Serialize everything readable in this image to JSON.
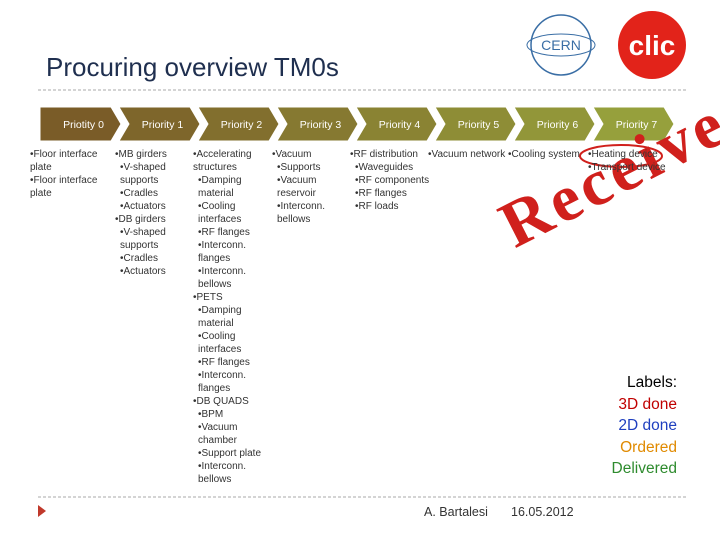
{
  "header": {
    "title": "Procuring overview TM0s"
  },
  "logos": {
    "cern": "CERN",
    "clic": "clic"
  },
  "columns": [
    {
      "heading": "Priotity 0",
      "items": [
        {
          "text": "Floor interface plate"
        },
        {
          "text": "Floor interface plate"
        }
      ]
    },
    {
      "heading": "Priority 1",
      "items": [
        {
          "text": "MB girders",
          "sub": [
            "V-shaped supports",
            "Cradles",
            "Actuators"
          ]
        },
        {
          "text": "DB girders",
          "sub": [
            "V-shaped supports",
            "Cradles",
            "Actuators"
          ]
        }
      ]
    },
    {
      "heading": "Priority 2",
      "items": [
        {
          "text": "Accelerating structures",
          "sub": [
            "Damping material",
            "Cooling interfaces",
            "RF flanges",
            "Interconn. flanges",
            "Interconn. bellows"
          ]
        },
        {
          "text": "PETS",
          "sub": [
            "Damping material",
            "Cooling interfaces",
            "RF flanges",
            "Interconn. flanges"
          ]
        },
        {
          "text": "DB QUADS",
          "sub": [
            "BPM",
            "Vacuum chamber",
            "Support plate",
            "Interconn. bellows"
          ]
        }
      ]
    },
    {
      "heading": "Priority 3",
      "items": [
        {
          "text": "Vacuum",
          "sub": [
            "Supports",
            "Vacuum reservoir",
            "Interconn. bellows"
          ]
        }
      ]
    },
    {
      "heading": "Priority 4",
      "items": [
        {
          "text": "RF distribution",
          "sub": [
            "Waveguides",
            "RF components",
            "RF flanges",
            "RF loads"
          ]
        }
      ]
    },
    {
      "heading": "Priority 5",
      "items": [
        {
          "text": "Vacuum network"
        }
      ]
    },
    {
      "heading": "Priority 6",
      "items": [
        {
          "text": "Cooling system"
        }
      ]
    },
    {
      "heading": "Priority 7",
      "items": [
        {
          "text": "Heating device"
        },
        {
          "text": "Transport device"
        }
      ]
    }
  ],
  "stamp": "Received",
  "labels": {
    "title": "Labels:",
    "entries": [
      {
        "text": "3D done",
        "color": "#c00000"
      },
      {
        "text": "2D done",
        "color": "#1f3fbf"
      },
      {
        "text": "Ordered",
        "color": "#e08a00"
      },
      {
        "text": "Delivered",
        "color": "#2e8b2e"
      }
    ]
  },
  "footer": {
    "author": "A. Bartalesi",
    "date": "16.05.2012"
  }
}
